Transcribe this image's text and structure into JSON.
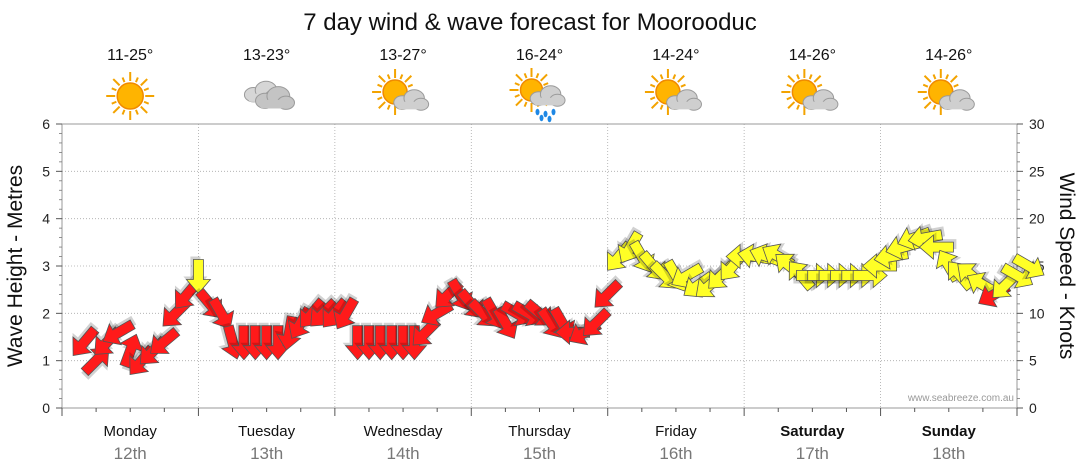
{
  "chart_data": {
    "type": "line",
    "title": "7 day wind & wave forecast for Moorooduc",
    "ylabel_left": "Wave Height - Metres",
    "ylabel_right": "Wind Speed - Knots",
    "ylim_left": [
      0,
      6
    ],
    "ylim_right": [
      0,
      30
    ],
    "left_ticks": [
      "0",
      "1",
      "2",
      "3",
      "4",
      "5",
      "6"
    ],
    "right_ticks": [
      "0",
      "5",
      "10",
      "15",
      "20",
      "25",
      "30"
    ],
    "grid": "dotted",
    "watermark": "www.seabreeze.com.au",
    "days": [
      {
        "name": "Monday",
        "date": "12th",
        "temp": "11-25°",
        "weather": "sunny",
        "bold": false
      },
      {
        "name": "Tuesday",
        "date": "13th",
        "temp": "13-23°",
        "weather": "cloudy",
        "bold": false
      },
      {
        "name": "Wednesday",
        "date": "14th",
        "temp": "13-27°",
        "weather": "partly-cloudy",
        "bold": false
      },
      {
        "name": "Thursday",
        "date": "15th",
        "temp": "16-24°",
        "weather": "showers",
        "bold": false
      },
      {
        "name": "Friday",
        "date": "16th",
        "temp": "14-24°",
        "weather": "partly-cloudy",
        "bold": false
      },
      {
        "name": "Saturday",
        "date": "17th",
        "temp": "14-26°",
        "weather": "partly-cloudy",
        "bold": true
      },
      {
        "name": "Sunday",
        "date": "18th",
        "temp": "14-26°",
        "weather": "partly-cloudy",
        "bold": true
      }
    ],
    "wind_color_scale": [
      {
        "max_knots": 12,
        "color": "#ff1a1a"
      },
      {
        "max_knots": 18,
        "color": "#ffff26"
      },
      {
        "max_knots": 30,
        "color": "#22dd22"
      }
    ],
    "series": [
      {
        "name": "Wind Speed (knots) with direction arrows",
        "hours_from_start": [
          0,
          2,
          4,
          6,
          8,
          10,
          12,
          14,
          16,
          18,
          20,
          22,
          24,
          26,
          28,
          30,
          32,
          34,
          36,
          38,
          40,
          42,
          44,
          46,
          48,
          50,
          52,
          54,
          56,
          58,
          60,
          62,
          64,
          66,
          68,
          70,
          72,
          74,
          76,
          78,
          80,
          82,
          84,
          86,
          88,
          90,
          92,
          94,
          96,
          98,
          100,
          102,
          104,
          106,
          108,
          110,
          112,
          114,
          116,
          118,
          120,
          122,
          124,
          126,
          128,
          130,
          132,
          134,
          136,
          138,
          140,
          142,
          144,
          146,
          148,
          150,
          152,
          154,
          156,
          158,
          160,
          162,
          164,
          166
        ],
        "knots": [
          7,
          5,
          7,
          8,
          6,
          5,
          6,
          7,
          10,
          12,
          14,
          11,
          10,
          7,
          7,
          7,
          7,
          7,
          8,
          9,
          10,
          10,
          10,
          10,
          7,
          7,
          7,
          7,
          7,
          7,
          8,
          10,
          12,
          12,
          11,
          10,
          10,
          9,
          10,
          10,
          10,
          9,
          9,
          8,
          8,
          9,
          12,
          16,
          17,
          16,
          15,
          14,
          14,
          14,
          13,
          13,
          14,
          15,
          16,
          16,
          16,
          16,
          15,
          14,
          14,
          14,
          14,
          14,
          14,
          14,
          15,
          16,
          17,
          18,
          18,
          17,
          15,
          14,
          14,
          13,
          12,
          13,
          14,
          15
        ],
        "direction_deg": [
          40,
          225,
          45,
          60,
          200,
          40,
          45,
          50,
          45,
          40,
          0,
          320,
          330,
          345,
          0,
          0,
          0,
          0,
          10,
          30,
          40,
          45,
          40,
          30,
          0,
          0,
          0,
          0,
          0,
          0,
          45,
          60,
          45,
          330,
          320,
          315,
          330,
          330,
          300,
          300,
          310,
          325,
          330,
          90,
          60,
          45,
          45,
          40,
          30,
          330,
          320,
          315,
          330,
          60,
          55,
          50,
          45,
          40,
          90,
          100,
          110,
          120,
          130,
          140,
          270,
          270,
          270,
          270,
          270,
          270,
          90,
          80,
          75,
          70,
          80,
          90,
          150,
          140,
          130,
          120,
          60,
          45,
          300,
          300
        ]
      }
    ]
  }
}
